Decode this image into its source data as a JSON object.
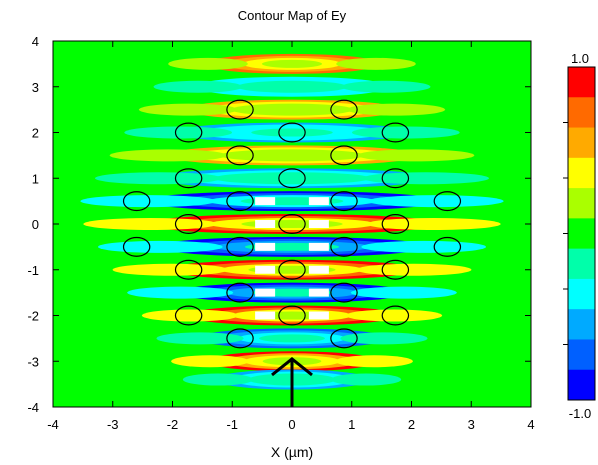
{
  "chart_data": {
    "type": "heatmap",
    "title": "Contour Map of Ey",
    "xlabel": "X (µm)",
    "ylabel": "",
    "xlim": [
      -4,
      4
    ],
    "ylim": [
      -4,
      4
    ],
    "x_ticks": [
      "-4",
      "-3",
      "-2",
      "-1",
      "0",
      "1",
      "2",
      "3",
      "4"
    ],
    "y_ticks": [
      "4",
      "3",
      "2",
      "1",
      "0",
      "-1",
      "-2",
      "-3",
      "-4"
    ],
    "colorbar": {
      "max_label": "1.0",
      "min_label": "-1.0",
      "range": [
        -1,
        1
      ],
      "colors": [
        "#ff0000",
        "#ff6a00",
        "#ffaa00",
        "#ffff00",
        "#aaff00",
        "#00ff00",
        "#00ffaa",
        "#00ffff",
        "#00aaff",
        "#0060ff",
        "#0000ff"
      ]
    },
    "background_value": 0.0,
    "field_bands": [
      {
        "y": 3.5,
        "value": 0.8
      },
      {
        "y": 3.0,
        "value": -0.45
      },
      {
        "y": 2.5,
        "value": 0.55
      },
      {
        "y": 2.0,
        "value": -0.6
      },
      {
        "y": 1.5,
        "value": 0.6
      },
      {
        "y": 1.0,
        "value": -0.55
      },
      {
        "y": 0.5,
        "value": -0.95
      },
      {
        "y": 0.0,
        "value": 0.95
      },
      {
        "y": -0.5,
        "value": -1.0
      },
      {
        "y": -1.0,
        "value": 1.0
      },
      {
        "y": -1.5,
        "value": -1.0
      },
      {
        "y": -2.0,
        "value": 1.0
      },
      {
        "y": -2.5,
        "value": -0.85
      },
      {
        "y": -3.0,
        "value": 0.9
      },
      {
        "y": -3.4,
        "value": -0.5
      }
    ],
    "rods": [
      {
        "x": -0.87,
        "y": 2.5
      },
      {
        "x": 0.87,
        "y": 2.5
      },
      {
        "x": -1.73,
        "y": 2.0
      },
      {
        "x": 0.0,
        "y": 2.0
      },
      {
        "x": 1.73,
        "y": 2.0
      },
      {
        "x": -0.87,
        "y": 1.5
      },
      {
        "x": 0.87,
        "y": 1.5
      },
      {
        "x": -1.73,
        "y": 1.0
      },
      {
        "x": 0.0,
        "y": 1.0
      },
      {
        "x": 1.73,
        "y": 1.0
      },
      {
        "x": -2.6,
        "y": 0.5
      },
      {
        "x": -0.87,
        "y": 0.5
      },
      {
        "x": 0.87,
        "y": 0.5
      },
      {
        "x": 2.6,
        "y": 0.5
      },
      {
        "x": -1.73,
        "y": 0.0
      },
      {
        "x": 0.0,
        "y": 0.0
      },
      {
        "x": 1.73,
        "y": 0.0
      },
      {
        "x": -2.6,
        "y": -0.5
      },
      {
        "x": -0.87,
        "y": -0.5
      },
      {
        "x": 0.87,
        "y": -0.5
      },
      {
        "x": 2.6,
        "y": -0.5
      },
      {
        "x": -1.73,
        "y": -1.0
      },
      {
        "x": 0.0,
        "y": -1.0
      },
      {
        "x": 1.73,
        "y": -1.0
      },
      {
        "x": -0.87,
        "y": -1.5
      },
      {
        "x": 0.87,
        "y": -1.5
      },
      {
        "x": -1.73,
        "y": -2.0
      },
      {
        "x": 0.0,
        "y": -2.0
      },
      {
        "x": 1.73,
        "y": -2.0
      },
      {
        "x": -0.87,
        "y": -2.5
      },
      {
        "x": 0.87,
        "y": -2.5
      }
    ],
    "rod_radius": 0.22,
    "source_arrow": {
      "x": 0.0,
      "y_from": -4.0,
      "y_to": -2.95
    }
  }
}
